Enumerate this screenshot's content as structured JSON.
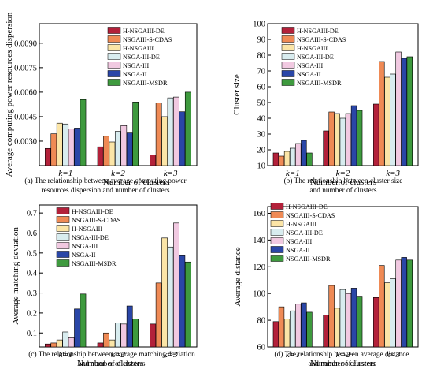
{
  "colors": {
    "H-NSGAIII-DE": "#b3213a",
    "NSGAIII-S-CDAS": "#ef8a55",
    "H-NSGAIII": "#fbe5a7",
    "NSGA-III-DE": "#d8ecef",
    "NSGA-III": "#f1c9e1",
    "NSGA-II": "#2a46a7",
    "NSGAIII-MSDR": "#3e9a3e"
  },
  "chart_data": [
    {
      "type": "bar",
      "categories": [
        "k=1",
        "k=2",
        "k=3"
      ],
      "xlabel": "Number of clusters",
      "ylabel": "Average computing power resources dispersion",
      "ylim": [
        0.0015,
        0.0102
      ],
      "yticks": [
        "0.0030",
        "0.0045",
        "0.0060",
        "0.0075",
        "0.0090"
      ],
      "caption_lines": [
        "(a) The relationship between average computing power",
        "resources dispersion and number of clusters"
      ],
      "legend_position": "top-right",
      "series": [
        {
          "name": "H-NSGAIII-DE",
          "values": [
            0.00255,
            0.00265,
            0.00215
          ]
        },
        {
          "name": "NSGAIII-S-CDAS",
          "values": [
            0.00345,
            0.0033,
            0.00535
          ]
        },
        {
          "name": "H-NSGAIII",
          "values": [
            0.0041,
            0.00295,
            0.0045
          ]
        },
        {
          "name": "NSGA-III-DE",
          "values": [
            0.00405,
            0.0036,
            0.00565
          ]
        },
        {
          "name": "NSGA-III",
          "values": [
            0.00375,
            0.00395,
            0.0057
          ]
        },
        {
          "name": "NSGA-II",
          "values": [
            0.0038,
            0.0035,
            0.0048
          ]
        },
        {
          "name": "NSGAIII-MSDR",
          "values": [
            0.00555,
            0.0054,
            0.006
          ]
        }
      ]
    },
    {
      "type": "bar",
      "categories": [
        "k=1",
        "k=2",
        "k=3"
      ],
      "xlabel": "Number of clusters",
      "ylabel": "Cluster size",
      "ylim": [
        10,
        100
      ],
      "yticks": [
        "10",
        "20",
        "30",
        "40",
        "50",
        "60",
        "70",
        "80",
        "90",
        "100"
      ],
      "caption_lines": [
        "(b) The relationship between cluster size",
        "and number of clusters"
      ],
      "legend_position": "top-left",
      "series": [
        {
          "name": "H-NSGAIII-DE",
          "values": [
            18,
            32,
            49
          ]
        },
        {
          "name": "NSGAIII-S-CDAS",
          "values": [
            16,
            44,
            76
          ]
        },
        {
          "name": "H-NSGAIII",
          "values": [
            19,
            43,
            66
          ]
        },
        {
          "name": "NSGA-III-DE",
          "values": [
            21,
            40,
            68
          ]
        },
        {
          "name": "NSGA-III",
          "values": [
            24,
            43,
            82
          ]
        },
        {
          "name": "NSGA-II",
          "values": [
            26,
            48,
            78
          ]
        },
        {
          "name": "NSGAIII-MSDR",
          "values": [
            18,
            45,
            79
          ]
        }
      ]
    },
    {
      "type": "bar",
      "categories": [
        "k=1",
        "k=2",
        "k=3"
      ],
      "xlabel": "Number of clusters",
      "ylabel": "Average matching deviation",
      "ylim": [
        0.03,
        0.74
      ],
      "yticks": [
        "0.1",
        "0.2",
        "0.3",
        "0.4",
        "0.5",
        "0.6",
        "0.7"
      ],
      "caption_lines": [
        "(c) The relationship between average matching deviation",
        "and number of clusters"
      ],
      "legend_position": "top-left",
      "series": [
        {
          "name": "H-NSGAIII-DE",
          "values": [
            0.045,
            0.05,
            0.145
          ]
        },
        {
          "name": "NSGAIII-S-CDAS",
          "values": [
            0.05,
            0.1,
            0.35
          ]
        },
        {
          "name": "H-NSGAIII",
          "values": [
            0.065,
            0.065,
            0.575
          ]
        },
        {
          "name": "NSGA-III-DE",
          "values": [
            0.105,
            0.15,
            0.53
          ]
        },
        {
          "name": "NSGA-III",
          "values": [
            0.08,
            0.145,
            0.65
          ]
        },
        {
          "name": "NSGA-II",
          "values": [
            0.22,
            0.235,
            0.49
          ]
        },
        {
          "name": "NSGAIII-MSDR",
          "values": [
            0.295,
            0.17,
            0.455
          ]
        }
      ]
    },
    {
      "type": "bar",
      "categories": [
        "k=1",
        "k=2",
        "k=3"
      ],
      "xlabel": "Number of clusters",
      "ylabel": "Average distance",
      "ylim": [
        60,
        165
      ],
      "yticks": [
        "60",
        "80",
        "100",
        "120",
        "140",
        "160"
      ],
      "caption_lines": [
        "(d) The relationship between average distance",
        "and number of clusters"
      ],
      "legend_position": "top-left",
      "series": [
        {
          "name": "H-NSGAIII-DE",
          "values": [
            79,
            84,
            97
          ]
        },
        {
          "name": "NSGAIII-S-CDAS",
          "values": [
            90,
            106,
            121
          ]
        },
        {
          "name": "H-NSGAIII",
          "values": [
            81,
            89,
            108
          ]
        },
        {
          "name": "NSGA-III-DE",
          "values": [
            87,
            103,
            111
          ]
        },
        {
          "name": "NSGA-III",
          "values": [
            92,
            100,
            125
          ]
        },
        {
          "name": "NSGA-II",
          "values": [
            93,
            104,
            127
          ]
        },
        {
          "name": "NSGAIII-MSDR",
          "values": [
            86,
            98,
            125
          ]
        }
      ]
    }
  ]
}
